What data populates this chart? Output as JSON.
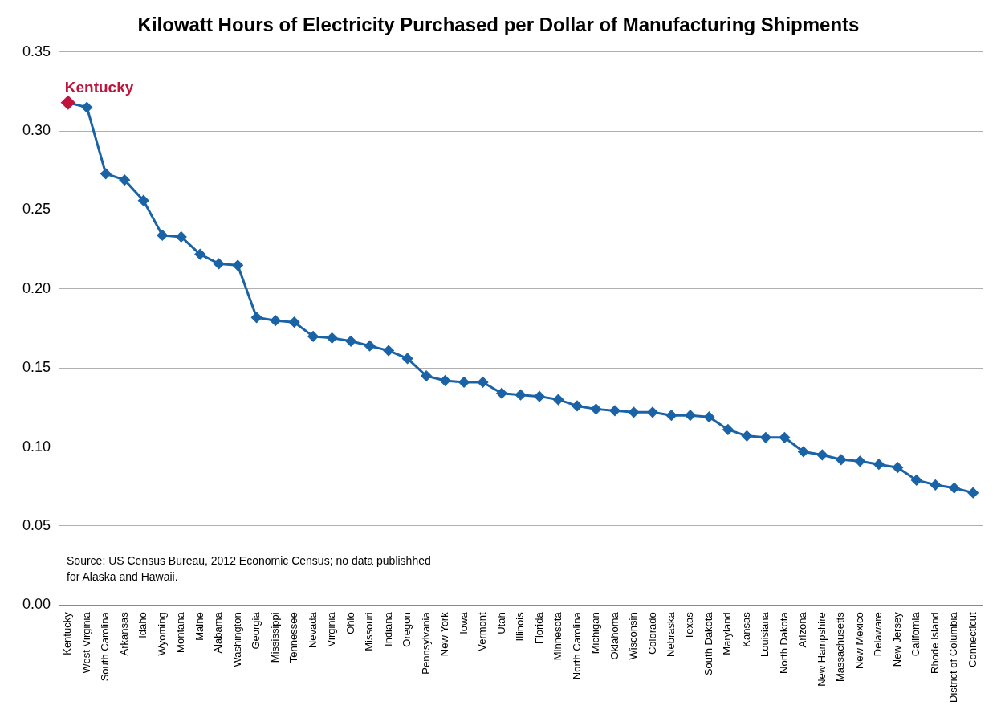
{
  "chart_data": {
    "type": "line",
    "title": "Kilowatt Hours of Electricity Purchased per Dollar of Manufacturing Shipments",
    "categories": [
      "Kentucky",
      "West Virginia",
      "South Carolina",
      "Arkansas",
      "Idaho",
      "Wyoming",
      "Montana",
      "Maine",
      "Alabama",
      "Washington",
      "Georgia",
      "Mississippi",
      "Tennessee",
      "Nevada",
      "Virginia",
      "Ohio",
      "Missouri",
      "Indiana",
      "Oregon",
      "Pennsylvania",
      "New York",
      "Iowa",
      "Vermont",
      "Utah",
      "Illinois",
      "Florida",
      "Minnesota",
      "North Carolina",
      "Michigan",
      "Oklahoma",
      "Wisconsin",
      "Colorado",
      "Nebraska",
      "Texas",
      "South Dakota",
      "Maryland",
      "Kansas",
      "Louisiana",
      "North Dakota",
      "Arizona",
      "New Hampshire",
      "Massachusetts",
      "New Mexico",
      "Delaware",
      "New Jersey",
      "California",
      "Rhode Island",
      "District of Columbia",
      "Connecticut"
    ],
    "series": [
      {
        "color": "#1a63a6",
        "colors": [
          "#c0143c",
          "#1a63a6",
          "#1a63a6",
          "#1a63a6",
          "#1a63a6",
          "#1a63a6",
          "#1a63a6",
          "#1a63a6",
          "#1a63a6",
          "#1a63a6",
          "#1a63a6",
          "#1a63a6",
          "#1a63a6",
          "#1a63a6",
          "#1a63a6",
          "#1a63a6",
          "#1a63a6",
          "#1a63a6",
          "#1a63a6",
          "#1a63a6",
          "#1a63a6",
          "#1a63a6",
          "#1a63a6",
          "#1a63a6",
          "#1a63a6",
          "#1a63a6",
          "#1a63a6",
          "#1a63a6",
          "#1a63a6",
          "#1a63a6",
          "#1a63a6",
          "#1a63a6",
          "#1a63a6",
          "#1a63a6",
          "#1a63a6",
          "#1a63a6",
          "#1a63a6",
          "#1a63a6",
          "#1a63a6",
          "#1a63a6",
          "#1a63a6",
          "#1a63a6",
          "#1a63a6",
          "#1a63a6",
          "#1a63a6",
          "#1a63a6",
          "#1a63a6",
          "#1a63a6",
          "#1a63a6"
        ],
        "values": [
          0.318,
          0.315,
          0.273,
          0.269,
          0.256,
          0.234,
          0.233,
          0.222,
          0.216,
          0.215,
          0.182,
          0.18,
          0.179,
          0.17,
          0.169,
          0.167,
          0.164,
          0.161,
          0.156,
          0.145,
          0.142,
          0.141,
          0.141,
          0.134,
          0.133,
          0.132,
          0.13,
          0.126,
          0.124,
          0.123,
          0.122,
          0.122,
          0.12,
          0.12,
          0.119,
          0.111,
          0.107,
          0.106,
          0.106,
          0.097,
          0.095,
          0.092,
          0.091,
          0.089,
          0.087,
          0.079,
          0.076,
          0.074,
          0.071
        ]
      }
    ],
    "ylim": [
      0,
      0.35
    ],
    "yticks": [
      {
        "value": 0,
        "label": "0.00"
      },
      {
        "value": 0.05,
        "label": "0.05"
      },
      {
        "value": 0.1,
        "label": "0.10"
      },
      {
        "value": 0.15,
        "label": "0.15"
      },
      {
        "value": 0.2,
        "label": "0.20"
      },
      {
        "value": 0.25,
        "label": "0.25"
      },
      {
        "value": 0.3,
        "label": "0.30"
      },
      {
        "value": 0.35,
        "label": "0.35"
      }
    ],
    "grid": "y",
    "legend": false,
    "marker": "diamond",
    "line_style": "solid",
    "annotations": [
      {
        "text": "Kentucky",
        "x": "Kentucky",
        "y": 0.318
      },
      "Source: US Census Bureau, 2012 Economic Census; no data publishhed for Alaska and Hawaii."
    ]
  }
}
